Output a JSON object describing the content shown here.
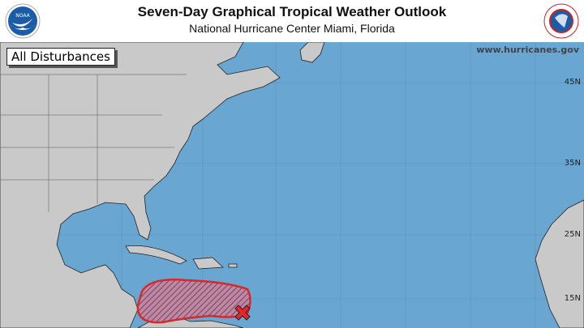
{
  "header": {
    "title": "Seven-Day Graphical Tropical Weather Outlook",
    "subtitle": "National Hurricane Center  Miami, Florida",
    "left_logo": "NOAA",
    "right_logo": "NATIONAL WEATHER SERVICE"
  },
  "map": {
    "panel_label": "All Disturbances",
    "website": "www.hurricanes.gov",
    "latitude_labels": [
      "45N",
      "35N",
      "25N",
      "15N"
    ],
    "colors": {
      "ocean": "#6aa6d2",
      "land": "#c9c9c9",
      "outlook_area": "#d42a2a",
      "x_marker": "#e8262a"
    },
    "disturbances": [
      {
        "icon": "x-marker-icon",
        "area": "hatched-red-outlook-area"
      }
    ]
  }
}
